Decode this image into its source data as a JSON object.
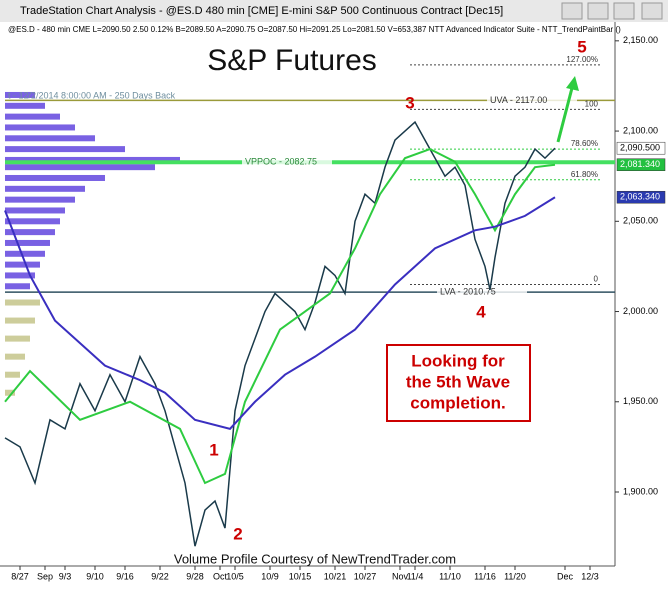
{
  "window_title": "TradeStation Chart Analysis - @ES.D 480 min [CME] E-mini S&P 500 Continuous Contract [Dec15]",
  "chart_data": {
    "type": "line",
    "info_line": "@ES.D - 480 min  CME  L=2090.50  2.50  0.12%  B=2089.50  A=2090.75  O=2087.50  Hi=2091.25  Lo=2081.50  V=653,387  NTT Advanced Indicator Suite - NTT_TrendPaintBar ()",
    "title": "S&P Futures",
    "profile_note": "t - 12/2/2014 8:00:00 AM - 250 Days Back",
    "credit": "Volume Profile Courtesy of NewTrendTrader.com",
    "callout": [
      "Looking for",
      "the 5th Wave",
      "completion."
    ],
    "wave_labels": [
      "1",
      "2",
      "3",
      "4",
      "5"
    ],
    "xlim": [
      0,
      122
    ],
    "ylim": [
      1859,
      2156
    ],
    "xticks": [
      {
        "value": 3,
        "label": "8/27"
      },
      {
        "value": 8,
        "label": "Sep"
      },
      {
        "value": 12,
        "label": "9/3"
      },
      {
        "value": 18,
        "label": "9/10"
      },
      {
        "value": 24,
        "label": "9/16"
      },
      {
        "value": 31,
        "label": "9/22"
      },
      {
        "value": 38,
        "label": "9/28"
      },
      {
        "value": 43,
        "label": "Oct"
      },
      {
        "value": 46,
        "label": "10/5"
      },
      {
        "value": 53,
        "label": "10/9"
      },
      {
        "value": 59,
        "label": "10/15"
      },
      {
        "value": 66,
        "label": "10/21"
      },
      {
        "value": 72,
        "label": "10/27"
      },
      {
        "value": 79,
        "label": "Nov"
      },
      {
        "value": 82,
        "label": "11/4"
      },
      {
        "value": 89,
        "label": "11/10"
      },
      {
        "value": 96,
        "label": "11/16"
      },
      {
        "value": 102,
        "label": "11/20"
      },
      {
        "value": 112,
        "label": "Dec"
      },
      {
        "value": 117,
        "label": "12/3"
      }
    ],
    "yticks": [
      {
        "value": 1900,
        "label": "1,900.00"
      },
      {
        "value": 1950,
        "label": "1,950.00"
      },
      {
        "value": 2000,
        "label": "2,000.00"
      },
      {
        "value": 2050,
        "label": "2,050.00"
      },
      {
        "value": 2100,
        "label": "2,100.00"
      },
      {
        "value": 2150,
        "label": "2,150.00"
      }
    ],
    "series": [
      {
        "name": "Price",
        "color": "#1a3a4a",
        "x": [
          0,
          3,
          6,
          9,
          12,
          15,
          18,
          21,
          24,
          27,
          30,
          32,
          34,
          36,
          38,
          40,
          42,
          44,
          46,
          48,
          50,
          52,
          54,
          56,
          58,
          60,
          62,
          64,
          66,
          68,
          70,
          72,
          74,
          76,
          78,
          80,
          82,
          84,
          86,
          88,
          90,
          92,
          94,
          96,
          97,
          98,
          100,
          102,
          104,
          106,
          108,
          110
        ],
        "values": [
          1930,
          1925,
          1905,
          1940,
          1935,
          1960,
          1945,
          1965,
          1950,
          1975,
          1960,
          1945,
          1925,
          1905,
          1870,
          1890,
          1895,
          1880,
          1945,
          1970,
          1985,
          2000,
          2010,
          2005,
          2000,
          1990,
          2005,
          2025,
          2020,
          2010,
          2050,
          2065,
          2060,
          2080,
          2095,
          2100,
          2105,
          2095,
          2085,
          2075,
          2080,
          2070,
          2040,
          2025,
          2012,
          2030,
          2060,
          2075,
          2080,
          2090,
          2085,
          2090.5
        ]
      },
      {
        "name": "Fast MA",
        "color": "#2ecc40",
        "x": [
          0,
          5,
          15,
          25,
          35,
          40,
          44,
          48,
          55,
          60,
          65,
          70,
          75,
          80,
          85,
          90,
          94,
          98,
          102,
          106,
          110
        ],
        "values": [
          1950,
          1967,
          1940,
          1950,
          1935,
          1905,
          1910,
          1950,
          1990,
          2000,
          2010,
          2035,
          2065,
          2085,
          2090,
          2083,
          2065,
          2045,
          2065,
          2080,
          2081.34
        ]
      },
      {
        "name": "Slow MA",
        "color": "#3a2fc0",
        "x": [
          0,
          5,
          10,
          20,
          27,
          32,
          38,
          45,
          50,
          56,
          62,
          70,
          78,
          86,
          94,
          98,
          104,
          110
        ],
        "values": [
          2056,
          2020,
          1995,
          1970,
          1962,
          1955,
          1940,
          1935,
          1950,
          1965,
          1975,
          1990,
          2015,
          2035,
          2045,
          2047,
          2053,
          2063.34
        ]
      }
    ],
    "levels": [
      {
        "label": "UVA - 2117.00",
        "value": 2117,
        "color": "#9a9a3a"
      },
      {
        "label": "VPPOC - 2082.75",
        "value": 2082.75,
        "color": "#44e060"
      },
      {
        "label": "LVA - 2010.75",
        "value": 2010.75,
        "color": "#2f5060"
      }
    ],
    "fib_levels": [
      {
        "label": "127.00%",
        "value": 2136.7
      },
      {
        "label": "100",
        "value": 2112
      },
      {
        "label": "78.60%",
        "value": 2090
      },
      {
        "label": "61.80%",
        "value": 2073
      },
      {
        "label": "0",
        "value": 2015
      }
    ],
    "price_tags": [
      {
        "value": 2090.5,
        "label": "2,090.500",
        "color": "#ffffff"
      },
      {
        "value": 2081.34,
        "label": "2,081.340",
        "color": "#22c040"
      },
      {
        "value": 2063.34,
        "label": "2,063.340",
        "color": "#2a3ab0"
      }
    ],
    "volume_profile": {
      "prices": [
        2120,
        2114,
        2108,
        2102,
        2096,
        2090,
        2084,
        2080,
        2074,
        2068,
        2062,
        2056,
        2050,
        2044,
        2038,
        2032,
        2026,
        2020,
        2014,
        2005,
        1995,
        1985,
        1975,
        1965,
        1955
      ],
      "values": [
        30,
        40,
        55,
        70,
        90,
        120,
        175,
        150,
        100,
        80,
        70,
        60,
        55,
        50,
        45,
        40,
        35,
        30,
        25,
        35,
        30,
        25,
        20,
        15,
        10
      ]
    }
  }
}
